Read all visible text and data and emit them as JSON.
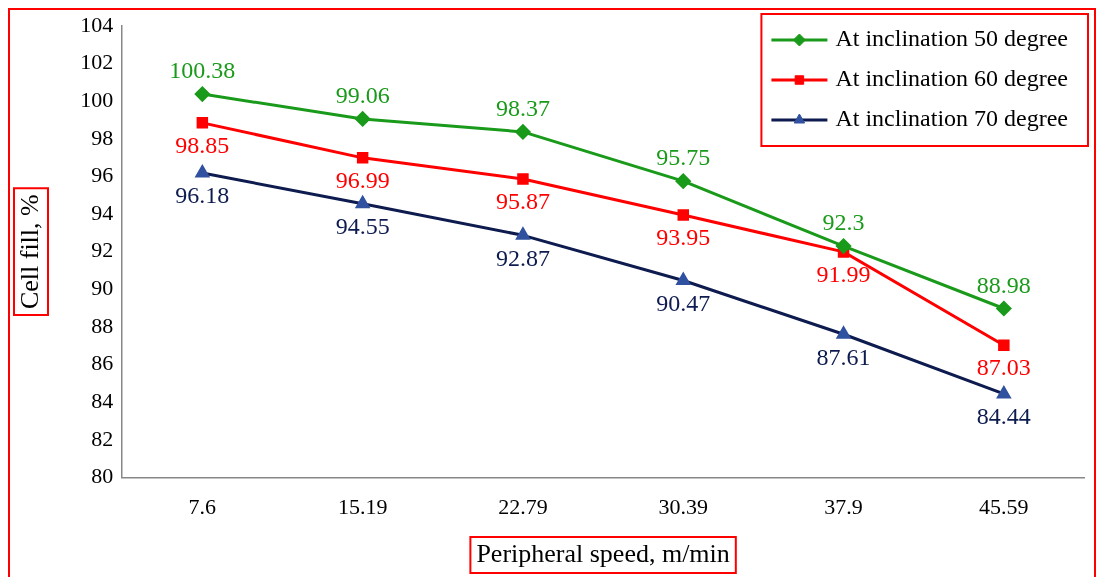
{
  "chart_data": {
    "type": "line",
    "xlabel": "Peripheral speed, m/min",
    "ylabel": "Cell fill, %",
    "categories": [
      "7.6",
      "15.19",
      "22.79",
      "30.39",
      "37.9",
      "45.59"
    ],
    "series": [
      {
        "name": "At inclination 50 degree",
        "color": "#1a9a1a",
        "marker": "diamond",
        "values": [
          100.38,
          99.06,
          98.37,
          95.75,
          92.3,
          88.98
        ]
      },
      {
        "name": "At inclination 60 degree",
        "color": "#ff0000",
        "marker": "square",
        "values": [
          98.85,
          96.99,
          95.87,
          93.95,
          91.99,
          87.03
        ]
      },
      {
        "name": "At inclination 70 degree",
        "color": "#0d1b4f",
        "marker": "triangle",
        "values": [
          96.18,
          94.55,
          92.87,
          90.47,
          87.61,
          84.44
        ]
      }
    ],
    "ylim": [
      80,
      104
    ],
    "yticks": [
      80,
      82,
      84,
      86,
      88,
      90,
      92,
      94,
      96,
      98,
      100,
      102,
      104
    ],
    "grid": false,
    "legend": "top right",
    "data_labels": true,
    "line_style": "solid"
  }
}
